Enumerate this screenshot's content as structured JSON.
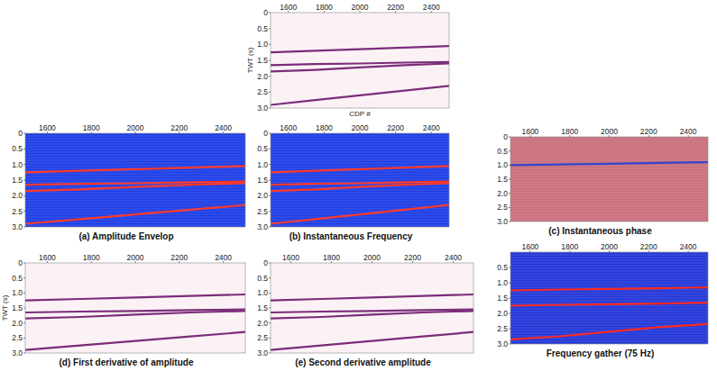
{
  "chart_data": [
    {
      "type": "seismic",
      "xlabel": "CDP #",
      "ylabel": "TWT (s)",
      "color": "#fbf1f4",
      "xlim": [
        1500,
        2500
      ],
      "xticks": [
        1600,
        1800,
        2000,
        2200,
        2400
      ],
      "ylim": [
        0,
        3
      ],
      "yticks": [
        0,
        {
          "value": 0.5,
          "label": "0.5"
        },
        {
          "value": 1,
          "label": "1.0"
        },
        {
          "value": 1.5,
          "label": "1.5"
        },
        {
          "value": 2,
          "label": "2.0"
        },
        {
          "value": 2.5,
          "label": "2.5"
        },
        {
          "value": 3,
          "label": "3.0"
        }
      ],
      "x": [
        1500,
        1750,
        2000,
        2250,
        2500
      ],
      "series": [
        {
          "color": "#7a2d7a",
          "values": [
            1.25,
            1.2,
            1.15,
            1.1,
            1.05
          ]
        },
        {
          "color": "#7a2d7a",
          "values": [
            1.65,
            1.62,
            1.6,
            1.57,
            1.55
          ]
        },
        {
          "color": "#7a2d7a",
          "values": [
            1.85,
            1.8,
            1.72,
            1.65,
            1.6
          ]
        },
        {
          "color": "#7a2d7a",
          "values": [
            2.9,
            2.75,
            2.6,
            2.45,
            2.3
          ]
        }
      ]
    },
    {
      "type": "seismic",
      "title": "(a) Amplitude Envelop",
      "color": "#1e3ee6",
      "xlim": [
        1500,
        2500
      ],
      "xticks": [
        1600,
        1800,
        2000,
        2200,
        2400
      ],
      "ylim": [
        0,
        3
      ],
      "yticks": [
        0,
        {
          "value": 0.5,
          "label": "0.5"
        },
        {
          "value": 1,
          "label": "1.0"
        },
        {
          "value": 1.5,
          "label": "1.5"
        },
        {
          "value": 2,
          "label": "2.0"
        },
        {
          "value": 2.5,
          "label": "2.5"
        },
        {
          "value": 3,
          "label": "3.0"
        }
      ],
      "x": [
        1500,
        1750,
        2000,
        2250,
        2500
      ],
      "series": [
        {
          "color": "#ff3a2a",
          "values": [
            1.25,
            1.2,
            1.15,
            1.1,
            1.05
          ]
        },
        {
          "color": "#ff3a2a",
          "values": [
            1.65,
            1.62,
            1.6,
            1.57,
            1.55
          ]
        },
        {
          "color": "#ff3a2a",
          "values": [
            1.85,
            1.8,
            1.72,
            1.65,
            1.6
          ]
        },
        {
          "color": "#ff3a2a",
          "values": [
            2.9,
            2.75,
            2.6,
            2.45,
            2.3
          ]
        }
      ]
    },
    {
      "type": "seismic",
      "title": "(b) Instantaneous Frequency",
      "color": "#1e3ee6",
      "xlim": [
        1500,
        2500
      ],
      "xticks": [
        1600,
        1800,
        2000,
        2200,
        2400
      ],
      "ylim": [
        0,
        3
      ],
      "yticks": [
        0,
        {
          "value": 0.5,
          "label": "0.5"
        },
        {
          "value": 1,
          "label": "1.0"
        },
        {
          "value": 1.5,
          "label": "1.5"
        },
        {
          "value": 2,
          "label": "2.0"
        },
        {
          "value": 2.5,
          "label": "2.5"
        },
        {
          "value": 3,
          "label": "3.0"
        }
      ],
      "x": [
        1500,
        1750,
        2000,
        2250,
        2500
      ],
      "series": [
        {
          "color": "#ff3a2a",
          "values": [
            1.25,
            1.2,
            1.15,
            1.1,
            1.05
          ]
        },
        {
          "color": "#ff3a2a",
          "values": [
            1.65,
            1.62,
            1.6,
            1.57,
            1.55
          ]
        },
        {
          "color": "#ff3a2a",
          "values": [
            1.85,
            1.8,
            1.72,
            1.65,
            1.6
          ]
        },
        {
          "color": "#ff3a2a",
          "values": [
            2.9,
            2.75,
            2.6,
            2.45,
            2.3
          ]
        }
      ]
    },
    {
      "type": "seismic",
      "title": "(c) Instantaneous phase",
      "color": "#c9707c",
      "xlim": [
        1500,
        2500
      ],
      "xticks": [
        1600,
        1800,
        2000,
        2200,
        2400
      ],
      "ylim": [
        0,
        3
      ],
      "yticks": [
        0,
        {
          "value": 0.5,
          "label": "0.5"
        },
        {
          "value": 1,
          "label": "1.0"
        },
        {
          "value": 1.5,
          "label": "1.5"
        },
        {
          "value": 2,
          "label": "2.0"
        },
        {
          "value": 2.5,
          "label": "2.5"
        },
        {
          "value": 3,
          "label": "3.0"
        }
      ],
      "x": [
        1500,
        1750,
        2000,
        2250,
        2500
      ],
      "series": [
        {
          "color": "#3344cc",
          "values": [
            1.0,
            0.98,
            0.95,
            0.92,
            0.9
          ]
        }
      ]
    },
    {
      "type": "seismic",
      "title": "(d) First derivative of amplitude",
      "ylabel": "TWT (s)",
      "color": "#fbf1f4",
      "xlim": [
        1500,
        2500
      ],
      "xticks": [
        1600,
        1800,
        2000,
        2200,
        2400
      ],
      "ylim": [
        0,
        3
      ],
      "yticks": [
        0,
        {
          "value": 0.5,
          "label": "0.5"
        },
        {
          "value": 1,
          "label": "1.0"
        },
        {
          "value": 1.5,
          "label": "1.5"
        },
        {
          "value": 2,
          "label": "2.0"
        },
        {
          "value": 2.5,
          "label": "2.5"
        },
        {
          "value": 3,
          "label": "3.0"
        }
      ],
      "x": [
        1500,
        1750,
        2000,
        2250,
        2500
      ],
      "series": [
        {
          "color": "#7a2d7a",
          "values": [
            1.25,
            1.2,
            1.15,
            1.1,
            1.05
          ]
        },
        {
          "color": "#7a2d7a",
          "values": [
            1.65,
            1.62,
            1.6,
            1.57,
            1.55
          ]
        },
        {
          "color": "#7a2d7a",
          "values": [
            1.85,
            1.8,
            1.72,
            1.65,
            1.6
          ]
        },
        {
          "color": "#7a2d7a",
          "values": [
            2.9,
            2.75,
            2.6,
            2.45,
            2.3
          ]
        }
      ]
    },
    {
      "type": "seismic",
      "title": "(e) Second derivative amplitude",
      "color": "#fbf1f4",
      "xlim": [
        1500,
        2500
      ],
      "xticks": [
        1600,
        1800,
        2000,
        2200,
        2400
      ],
      "ylim": [
        0,
        3
      ],
      "yticks": [
        0,
        {
          "value": 0.5,
          "label": "0.5"
        },
        {
          "value": 1,
          "label": "1.0"
        },
        {
          "value": 1.5,
          "label": "1.5"
        },
        {
          "value": 2,
          "label": "2.0"
        },
        {
          "value": 2.5,
          "label": "2.5"
        },
        {
          "value": 3,
          "label": "3.0"
        }
      ],
      "x": [
        1500,
        1750,
        2000,
        2250,
        2500
      ],
      "series": [
        {
          "color": "#7a2d7a",
          "values": [
            1.25,
            1.2,
            1.15,
            1.1,
            1.05
          ]
        },
        {
          "color": "#7a2d7a",
          "values": [
            1.65,
            1.62,
            1.6,
            1.57,
            1.55
          ]
        },
        {
          "color": "#7a2d7a",
          "values": [
            1.85,
            1.8,
            1.72,
            1.65,
            1.6
          ]
        },
        {
          "color": "#7a2d7a",
          "values": [
            2.9,
            2.75,
            2.6,
            2.45,
            2.3
          ]
        }
      ]
    },
    {
      "type": "seismic",
      "title": "Frequency gather (75 Hz)",
      "color": "#2438d8",
      "xlim": [
        1500,
        2500
      ],
      "xticks": [
        1600,
        1800,
        2000,
        2200,
        2400
      ],
      "ylim": [
        0,
        3
      ],
      "yticks": [
        {
          "value": 0.5,
          "label": "0.5"
        },
        {
          "value": 1,
          "label": "1.0"
        },
        {
          "value": 1.5,
          "label": "1.5"
        },
        {
          "value": 2,
          "label": "2.0"
        },
        {
          "value": 2.5,
          "label": "2.5"
        },
        {
          "value": 3,
          "label": "3.0"
        }
      ],
      "x": [
        1500,
        1750,
        2000,
        2250,
        2500
      ],
      "series": [
        {
          "color": "#ff2a1e",
          "values": [
            1.25,
            1.22,
            1.2,
            1.18,
            1.15
          ]
        },
        {
          "color": "#ff2a1e",
          "values": [
            1.75,
            1.72,
            1.7,
            1.68,
            1.65
          ]
        },
        {
          "color": "#ff2a1e",
          "values": [
            2.85,
            2.75,
            2.6,
            2.45,
            2.35
          ]
        }
      ]
    }
  ]
}
